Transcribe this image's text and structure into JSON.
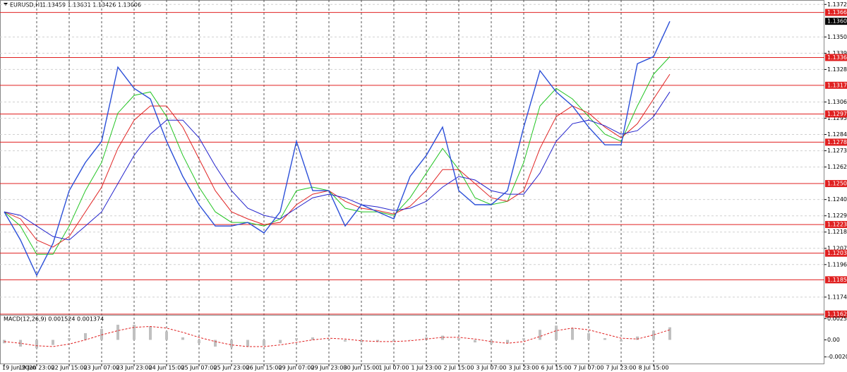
{
  "chart_data": [
    {
      "type": "line",
      "title": "EURUSD,H1",
      "subtitle": "1.13459 1.13631 1.13426 1.13606",
      "categories": [
        "19 Jun 2020",
        null,
        "19 Jun 23:00",
        null,
        "22 Jun 15:00",
        null,
        "23 Jun 07:00",
        null,
        "23 Jun 23:00",
        null,
        "24 Jun 15:00",
        null,
        "25 Jun 07:00",
        null,
        "25 Jun 23:00",
        null,
        "26 Jun 15:00",
        null,
        "29 Jun 07:00",
        null,
        "29 Jun 23:00",
        null,
        "30 Jun 15:00",
        null,
        "1 Jul 07:00",
        null,
        "1 Jul 23:00",
        null,
        "2 Jul 15:00",
        null,
        "3 Jul 07:00",
        null,
        "3 Jul 23:00",
        null,
        "6 Jul 15:00",
        null,
        "7 Jul 07:00",
        null,
        "7 Jul 23:00",
        null,
        "8 Jul 15:00",
        null
      ],
      "values": [
        1.12317,
        1.12126,
        1.11887,
        1.12102,
        1.1246,
        1.12651,
        1.12794,
        1.13296,
        1.13152,
        1.13081,
        1.12794,
        1.12556,
        1.12365,
        1.12221,
        1.12221,
        1.12245,
        1.12174,
        1.12317,
        1.12794,
        1.1246,
        1.1246,
        1.12221,
        1.12365,
        1.12317,
        1.12269,
        1.12556,
        1.12699,
        1.1289,
        1.1246,
        1.12365,
        1.12365,
        1.1246,
        1.1289,
        1.13272,
        1.13128,
        1.13033,
        1.1289,
        1.1277,
        1.1277,
        1.13319,
        1.13367,
        1.13606
      ],
      "color": "#2b4fd8",
      "moving_averages": [
        {
          "color": "#22c422",
          "values": [
            1.12317,
            1.12221,
            1.1203,
            1.1203,
            1.12221,
            1.1246,
            1.12651,
            1.12985,
            1.13105,
            1.13128,
            1.12961,
            1.12699,
            1.12484,
            1.12317,
            1.12245,
            1.12245,
            1.12221,
            1.12269,
            1.1246,
            1.12484,
            1.1246,
            1.12341,
            1.12317,
            1.12317,
            1.12293,
            1.12412,
            1.12579,
            1.12746,
            1.12603,
            1.12412,
            1.12365,
            1.12388,
            1.12651,
            1.13033,
            1.13152,
            1.13081,
            1.12961,
            1.12842,
            1.12794,
            1.13033,
            1.13248,
            1.13367
          ]
        },
        {
          "color": "#e02424",
          "values": [
            1.12317,
            1.12269,
            1.12126,
            1.12078,
            1.1215,
            1.12317,
            1.12484,
            1.12746,
            1.12937,
            1.13033,
            1.13033,
            1.1289,
            1.12675,
            1.1246,
            1.12317,
            1.12269,
            1.12231,
            1.12245,
            1.12365,
            1.12436,
            1.1246,
            1.12388,
            1.12341,
            1.12326,
            1.12302,
            1.12355,
            1.1246,
            1.12603,
            1.12603,
            1.12508,
            1.12412,
            1.12388,
            1.1246,
            1.12746,
            1.12961,
            1.13033,
            1.12985,
            1.1289,
            1.12818,
            1.12913,
            1.13081,
            1.13248
          ]
        },
        {
          "color": "#2222cc",
          "values": [
            1.12317,
            1.12293,
            1.12221,
            1.1215,
            1.12126,
            1.12221,
            1.12317,
            1.12508,
            1.12699,
            1.12842,
            1.12937,
            1.12937,
            1.12818,
            1.12627,
            1.1246,
            1.12341,
            1.12293,
            1.12269,
            1.12341,
            1.12412,
            1.12436,
            1.12412,
            1.12365,
            1.1235,
            1.12326,
            1.12341,
            1.12388,
            1.12484,
            1.12556,
            1.12532,
            1.1246,
            1.12436,
            1.12436,
            1.12579,
            1.12794,
            1.12913,
            1.12937,
            1.12899,
            1.12842,
            1.12866,
            1.12961,
            1.13128
          ]
        }
      ],
      "levels": [
        1.13666,
        1.13361,
        1.13173,
        1.12979,
        1.12788,
        1.12508,
        1.12231,
        1.12037,
        1.11857,
        1.11625
      ],
      "level_color": "#e02020",
      "current_price": 1.13606,
      "ylim": [
        1.1162,
        1.1375
      ],
      "yticks": [
        {
          "value": 1.1372,
          "label": "1.13720"
        },
        {
          "value": 1.135,
          "label": "1.13500"
        },
        {
          "value": 1.1339,
          "label": "1.13390"
        },
        {
          "value": 1.1328,
          "label": "1.13280"
        },
        {
          "value": 1.1306,
          "label": "1.13060"
        },
        {
          "value": 1.1295,
          "label": "1.12950"
        },
        {
          "value": 1.1284,
          "label": "1.12840"
        },
        {
          "value": 1.1273,
          "label": "1.12730"
        },
        {
          "value": 1.1262,
          "label": "1.12620"
        },
        {
          "value": 1.124,
          "label": "1.12400"
        },
        {
          "value": 1.1229,
          "label": "1.12290"
        },
        {
          "value": 1.1218,
          "label": "1.12180"
        },
        {
          "value": 1.1207,
          "label": "1.12070"
        },
        {
          "value": 1.1196,
          "label": "1.11960"
        },
        {
          "value": 1.1174,
          "label": "1.11740"
        }
      ],
      "grid": true
    },
    {
      "type": "bar",
      "title": "MACD(12,26,9) 0.001524 0.001374",
      "values": [
        -0.0004,
        -0.0008,
        -0.001,
        -0.0006,
        0.0002,
        0.0008,
        0.0013,
        0.0018,
        0.0018,
        0.0016,
        0.001,
        0.0003,
        -0.0004,
        -0.0008,
        -0.0009,
        -0.0008,
        -0.0007,
        -0.0004,
        0.0002,
        0.0003,
        0.0001,
        -0.0002,
        -0.0003,
        -0.0002,
        -0.0002,
        0.0,
        0.0003,
        0.0005,
        0.0002,
        -0.0003,
        -0.0005,
        -0.0004,
        0.0002,
        0.0012,
        0.0017,
        0.0014,
        0.0008,
        0.0002,
        -0.0002,
        0.0004,
        0.0011,
        0.0015
      ],
      "color": "#c0c0c0",
      "signal": [
        -0.0002,
        -0.0004,
        -0.0007,
        -0.0008,
        -0.0005,
        0.0,
        0.0006,
        0.0011,
        0.0015,
        0.0016,
        0.0014,
        0.0009,
        0.0003,
        -0.0002,
        -0.0006,
        -0.0008,
        -0.0008,
        -0.0006,
        -0.0003,
        0.0,
        0.0002,
        0.0001,
        -0.0001,
        -0.0002,
        -0.0002,
        -0.0001,
        0.0001,
        0.0003,
        0.0003,
        0.0001,
        -0.0002,
        -0.0004,
        -0.0002,
        0.0004,
        0.0011,
        0.0014,
        0.0012,
        0.0007,
        0.0002,
        0.0001,
        0.0006,
        0.0012
      ],
      "signal_color": "#e02020",
      "ylim": [
        -0.0029,
        0.0029
      ],
      "yticks": [
        {
          "value": 0.00253,
          "label": "0.00253"
        },
        {
          "value": 0,
          "label": "0.00"
        },
        {
          "value": -0.00203,
          "label": "-0.00203"
        }
      ]
    }
  ]
}
